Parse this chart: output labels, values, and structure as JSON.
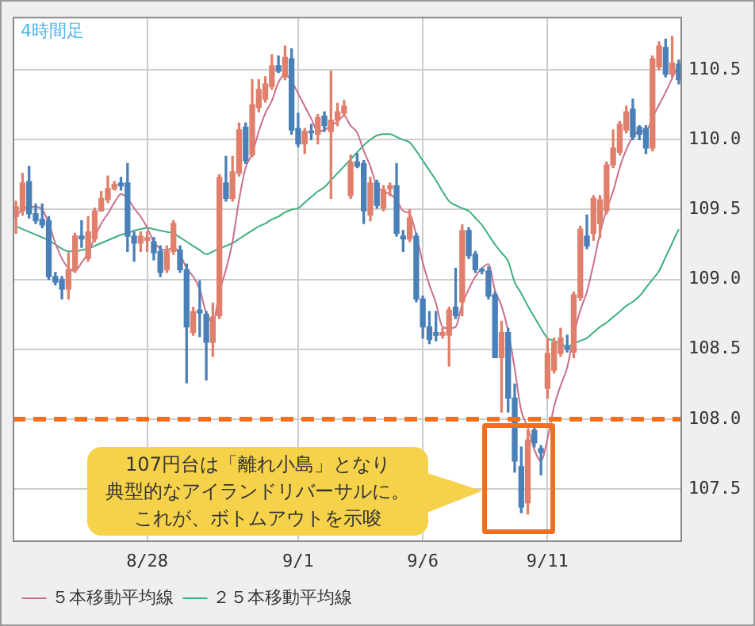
{
  "chart_data": {
    "type": "candlestick",
    "title": "4時間足",
    "categories": [
      null,
      null,
      null,
      null,
      null,
      null,
      null,
      null,
      null,
      null,
      null,
      null,
      null,
      null,
      null,
      null,
      null,
      null,
      null,
      null,
      "8/28",
      null,
      null,
      null,
      null,
      null,
      null,
      null,
      null,
      null,
      null,
      null,
      null,
      null,
      null,
      null,
      null,
      null,
      null,
      null,
      null,
      null,
      null,
      "9/1",
      null,
      null,
      null,
      null,
      null,
      null,
      null,
      null,
      null,
      null,
      null,
      null,
      null,
      null,
      null,
      null,
      null,
      null,
      "9/6",
      null,
      null,
      null,
      null,
      null,
      null,
      null,
      null,
      null,
      null,
      null,
      null,
      null,
      null,
      null,
      null,
      null,
      null,
      "9/11",
      null,
      null,
      null,
      null,
      null,
      null,
      null,
      null,
      null,
      null,
      null,
      null,
      null,
      null,
      null,
      null,
      null,
      null,
      null,
      null
    ],
    "series": [
      {
        "ohlc": [
          [
            109.45,
            109.56,
            109.33,
            109.52
          ],
          [
            109.49,
            109.76,
            109.46,
            109.69
          ],
          [
            109.7,
            109.81,
            109.44,
            109.47
          ],
          [
            109.47,
            109.54,
            109.4,
            109.42
          ],
          [
            109.43,
            109.54,
            109.37,
            109.39
          ],
          [
            109.42,
            109.45,
            109.0,
            109.02
          ],
          [
            109.02,
            109.05,
            108.96,
            108.98
          ],
          [
            109.0,
            109.02,
            108.86,
            108.93
          ],
          [
            108.93,
            109.19,
            108.86,
            109.07
          ],
          [
            109.07,
            109.33,
            109.05,
            109.31
          ],
          [
            109.31,
            109.42,
            109.23,
            109.29
          ],
          [
            109.15,
            109.45,
            109.13,
            109.34
          ],
          [
            109.29,
            109.51,
            109.27,
            109.49
          ],
          [
            109.49,
            109.63,
            109.49,
            109.58
          ],
          [
            109.57,
            109.74,
            109.55,
            109.65
          ],
          [
            109.65,
            109.7,
            109.64,
            109.68
          ],
          [
            109.69,
            109.73,
            109.64,
            109.67
          ],
          [
            109.69,
            109.83,
            109.2,
            109.31
          ],
          [
            109.31,
            109.34,
            109.13,
            109.26
          ],
          [
            109.26,
            109.34,
            109.2,
            109.31
          ],
          [
            109.28,
            109.34,
            109.2,
            109.3
          ],
          [
            109.27,
            109.3,
            109.14,
            109.19
          ],
          [
            109.2,
            109.24,
            109.02,
            109.05
          ],
          [
            109.07,
            109.24,
            109.05,
            109.2
          ],
          [
            109.2,
            109.42,
            109.18,
            109.4
          ],
          [
            109.21,
            109.24,
            109.05,
            109.07
          ],
          [
            109.07,
            109.11,
            108.26,
            108.66
          ],
          [
            108.62,
            108.8,
            108.6,
            108.77
          ],
          [
            108.78,
            108.99,
            108.59,
            108.76
          ],
          [
            108.75,
            108.77,
            108.28,
            108.55
          ],
          [
            108.55,
            108.83,
            108.45,
            108.73
          ],
          [
            108.74,
            109.75,
            108.72,
            109.73
          ],
          [
            109.69,
            109.88,
            109.56,
            109.58
          ],
          [
            109.58,
            109.88,
            109.56,
            109.77
          ],
          [
            109.76,
            110.12,
            109.74,
            110.07
          ],
          [
            110.09,
            110.12,
            109.83,
            109.85
          ],
          [
            109.89,
            110.43,
            109.88,
            110.25
          ],
          [
            110.23,
            110.43,
            110.2,
            110.36
          ],
          [
            110.29,
            110.45,
            110.27,
            110.4
          ],
          [
            110.38,
            110.61,
            110.36,
            110.53
          ],
          [
            110.53,
            110.6,
            110.48,
            110.49
          ],
          [
            110.45,
            110.67,
            110.43,
            110.59
          ],
          [
            110.58,
            110.65,
            110.04,
            110.07
          ],
          [
            110.08,
            110.19,
            109.95,
            109.97
          ],
          [
            109.97,
            110.08,
            109.9,
            110.06
          ],
          [
            110.06,
            110.11,
            110.0,
            110.05
          ],
          [
            110.04,
            110.18,
            109.97,
            110.16
          ],
          [
            110.17,
            110.2,
            110.06,
            110.1
          ],
          [
            110.06,
            110.49,
            109.58,
            110.14
          ],
          [
            110.14,
            110.26,
            110.1,
            110.2
          ],
          [
            110.19,
            110.28,
            110.17,
            110.24
          ],
          [
            109.6,
            109.89,
            109.58,
            109.84
          ],
          [
            109.84,
            109.9,
            109.8,
            109.81
          ],
          [
            109.83,
            109.85,
            109.4,
            109.49
          ],
          [
            109.46,
            109.73,
            109.42,
            109.69
          ],
          [
            109.69,
            109.71,
            109.51,
            109.53
          ],
          [
            109.51,
            109.67,
            109.49,
            109.64
          ],
          [
            109.65,
            109.69,
            109.6,
            109.67
          ],
          [
            109.67,
            109.83,
            109.31,
            109.33
          ],
          [
            109.31,
            109.35,
            109.2,
            109.29
          ],
          [
            109.29,
            109.5,
            109.27,
            109.44
          ],
          [
            109.31,
            109.33,
            108.84,
            108.86
          ],
          [
            108.86,
            108.88,
            108.58,
            108.66
          ],
          [
            108.66,
            108.77,
            108.54,
            108.57
          ],
          [
            108.62,
            108.77,
            108.56,
            108.6
          ],
          [
            108.6,
            108.65,
            108.58,
            108.62
          ],
          [
            108.6,
            108.8,
            108.38,
            108.78
          ],
          [
            108.8,
            109.08,
            108.72,
            108.74
          ],
          [
            108.84,
            109.39,
            108.74,
            109.35
          ],
          [
            109.35,
            109.37,
            109.15,
            109.17
          ],
          [
            109.18,
            109.2,
            109.05,
            109.07
          ],
          [
            109.07,
            109.08,
            109.04,
            109.06
          ],
          [
            109.06,
            109.09,
            108.86,
            108.88
          ],
          [
            108.89,
            108.91,
            108.44,
            108.44
          ],
          [
            108.44,
            108.7,
            108.05,
            108.62
          ],
          [
            108.62,
            108.65,
            108.05,
            108.15
          ],
          [
            108.15,
            108.25,
            107.62,
            107.7
          ],
          [
            107.66,
            107.8,
            107.33,
            107.37
          ],
          [
            107.4,
            107.92,
            107.32,
            107.85
          ],
          [
            107.92,
            107.94,
            107.8,
            107.83
          ],
          [
            107.79,
            107.81,
            107.6,
            107.76
          ],
          [
            108.22,
            108.58,
            108.15,
            108.47
          ],
          [
            108.35,
            108.58,
            108.33,
            108.55
          ],
          [
            108.47,
            108.65,
            108.45,
            108.58
          ],
          [
            108.52,
            108.6,
            108.48,
            108.5
          ],
          [
            108.48,
            108.91,
            108.44,
            108.89
          ],
          [
            108.87,
            109.38,
            108.85,
            109.36
          ],
          [
            109.31,
            109.46,
            109.22,
            109.24
          ],
          [
            109.33,
            109.6,
            109.28,
            109.58
          ],
          [
            109.4,
            109.6,
            109.3,
            109.57
          ],
          [
            109.49,
            109.84,
            109.47,
            109.82
          ],
          [
            109.82,
            110.07,
            109.8,
            109.94
          ],
          [
            109.91,
            110.13,
            109.89,
            110.11
          ],
          [
            110.07,
            110.24,
            110.05,
            110.2
          ],
          [
            110.22,
            110.29,
            110.0,
            110.02
          ],
          [
            110.09,
            110.1,
            110.0,
            110.04
          ],
          [
            110.08,
            110.1,
            109.9,
            109.94
          ],
          [
            109.94,
            110.6,
            109.92,
            110.58
          ],
          [
            110.52,
            110.7,
            110.5,
            110.67
          ],
          [
            110.66,
            110.72,
            110.45,
            110.47
          ],
          [
            110.47,
            110.74,
            110.45,
            110.55
          ],
          [
            110.54,
            110.57,
            110.4,
            110.43
          ]
        ],
        "colors": [
          "#e0806c",
          "#e0806c",
          "#4a80b8",
          "#4a80b8",
          "#4a80b8",
          "#4a80b8",
          "#4a80b8",
          "#4a80b8",
          "#e0806c",
          "#e0806c",
          "#4a80b8",
          "#e0806c",
          "#e0806c",
          "#e0806c",
          "#e0806c",
          "#e0806c",
          "#4a80b8",
          "#4a80b8",
          "#4a80b8",
          "#e0806c",
          "#e0806c",
          "#4a80b8",
          "#4a80b8",
          "#e0806c",
          "#e0806c",
          "#4a80b8",
          "#4a80b8",
          "#e0806c",
          "#4a80b8",
          "#4a80b8",
          "#e0806c",
          "#e0806c",
          "#4a80b8",
          "#e0806c",
          "#e0806c",
          "#4a80b8",
          "#e0806c",
          "#e0806c",
          "#e0806c",
          "#e0806c",
          "#4a80b8",
          "#e0806c",
          "#4a80b8",
          "#4a80b8",
          "#e0806c",
          "#4a80b8",
          "#e0806c",
          "#4a80b8",
          "#e0806c",
          "#e0806c",
          "#e0806c",
          "#e0806c",
          "#4a80b8",
          "#4a80b8",
          "#e0806c",
          "#4a80b8",
          "#e0806c",
          "#e0806c",
          "#4a80b8",
          "#4a80b8",
          "#e0806c",
          "#4a80b8",
          "#4a80b8",
          "#4a80b8",
          "#4a80b8",
          "#e0806c",
          "#e0806c",
          "#4a80b8",
          "#e0806c",
          "#4a80b8",
          "#4a80b8",
          "#4a80b8",
          "#4a80b8",
          "#4a80b8",
          "#e0806c",
          "#4a80b8",
          "#4a80b8",
          "#4a80b8",
          "#e0806c",
          "#4a80b8",
          "#4a80b8",
          "#e0806c",
          "#e0806c",
          "#e0806c",
          "#4a80b8",
          "#e0806c",
          "#e0806c",
          "#4a80b8",
          "#e0806c",
          "#e0806c",
          "#e0806c",
          "#e0806c",
          "#e0806c",
          "#e0806c",
          "#4a80b8",
          "#4a80b8",
          "#4a80b8",
          "#e0806c",
          "#e0806c",
          "#4a80b8",
          "#e0806c",
          "#4a80b8"
        ]
      },
      {
        "type": "line",
        "name": "５本移動平均線",
        "color": "#c8708a",
        "values": [
          109.45,
          109.5,
          109.52,
          109.52,
          109.5,
          109.4,
          109.26,
          109.15,
          109.08,
          109.06,
          109.12,
          109.19,
          109.3,
          109.4,
          109.47,
          109.55,
          109.61,
          109.58,
          109.51,
          109.45,
          109.37,
          109.27,
          109.22,
          109.21,
          109.23,
          109.18,
          109.08,
          109.02,
          108.93,
          108.76,
          108.69,
          108.91,
          109.07,
          109.27,
          109.57,
          109.8,
          109.9,
          110.06,
          110.19,
          110.28,
          110.41,
          110.47,
          110.42,
          110.33,
          110.24,
          110.15,
          110.06,
          110.07,
          110.1,
          110.13,
          110.17,
          110.1,
          110.05,
          109.92,
          109.81,
          109.67,
          109.63,
          109.61,
          109.57,
          109.49,
          109.47,
          109.32,
          109.12,
          108.96,
          108.83,
          108.66,
          108.65,
          108.66,
          108.82,
          108.93,
          109.02,
          109.08,
          109.11,
          108.92,
          108.81,
          108.63,
          108.36,
          108.06,
          107.94,
          107.78,
          107.7,
          107.86,
          108.09,
          108.24,
          108.37,
          108.6,
          108.78,
          108.91,
          109.11,
          109.33,
          109.5,
          109.63,
          109.8,
          109.93,
          110.02,
          110.06,
          110.06,
          110.16,
          110.25,
          110.34,
          110.44,
          110.54
        ]
      },
      {
        "type": "line",
        "name": "２５本移動平均線",
        "color": "#3cb07c",
        "values": [
          109.38,
          109.36,
          109.34,
          109.32,
          109.3,
          109.28,
          109.25,
          109.22,
          109.2,
          109.2,
          109.21,
          109.22,
          109.24,
          109.26,
          109.28,
          109.3,
          109.32,
          109.33,
          109.35,
          109.36,
          109.37,
          109.36,
          109.35,
          109.34,
          109.33,
          109.3,
          109.27,
          109.24,
          109.21,
          109.18,
          109.2,
          109.22,
          109.24,
          109.26,
          109.29,
          109.32,
          109.35,
          109.38,
          109.4,
          109.43,
          109.45,
          109.48,
          109.5,
          109.51,
          109.55,
          109.59,
          109.63,
          109.66,
          109.71,
          109.76,
          109.81,
          109.86,
          109.91,
          109.96,
          110.0,
          110.03,
          110.04,
          110.04,
          110.02,
          110.0,
          109.98,
          109.92,
          109.85,
          109.78,
          109.71,
          109.63,
          109.56,
          109.53,
          109.51,
          109.49,
          109.44,
          109.39,
          109.32,
          109.25,
          109.19,
          109.13,
          108.98,
          108.9,
          108.81,
          108.73,
          108.65,
          108.58,
          108.56,
          108.54,
          108.52,
          108.54,
          108.56,
          108.58,
          108.62,
          108.66,
          108.69,
          108.73,
          108.77,
          108.81,
          108.84,
          108.88,
          108.94,
          109.0,
          109.06,
          109.16,
          109.26,
          109.36
        ]
      }
    ],
    "ylim": [
      107.12,
      110.88
    ],
    "yticks": [
      107.5,
      {
        "value": 108,
        "label": "108.0"
      },
      108.5,
      {
        "value": 109,
        "label": "109.0"
      },
      109.5,
      {
        "value": 110,
        "label": "110.0"
      },
      110.5
    ],
    "ref_lines": [
      {
        "axis": "y",
        "value": 108,
        "color": "#f07020",
        "line_style": "dashed"
      }
    ],
    "annotations": [
      "107円台は「離れ小島」となり",
      "典型的なアイランドリバーサルに。",
      "これが、ボトムアウトを示唆"
    ],
    "grid": true,
    "legend": "bottom left",
    "marker": "none",
    "line_style": "solid"
  }
}
